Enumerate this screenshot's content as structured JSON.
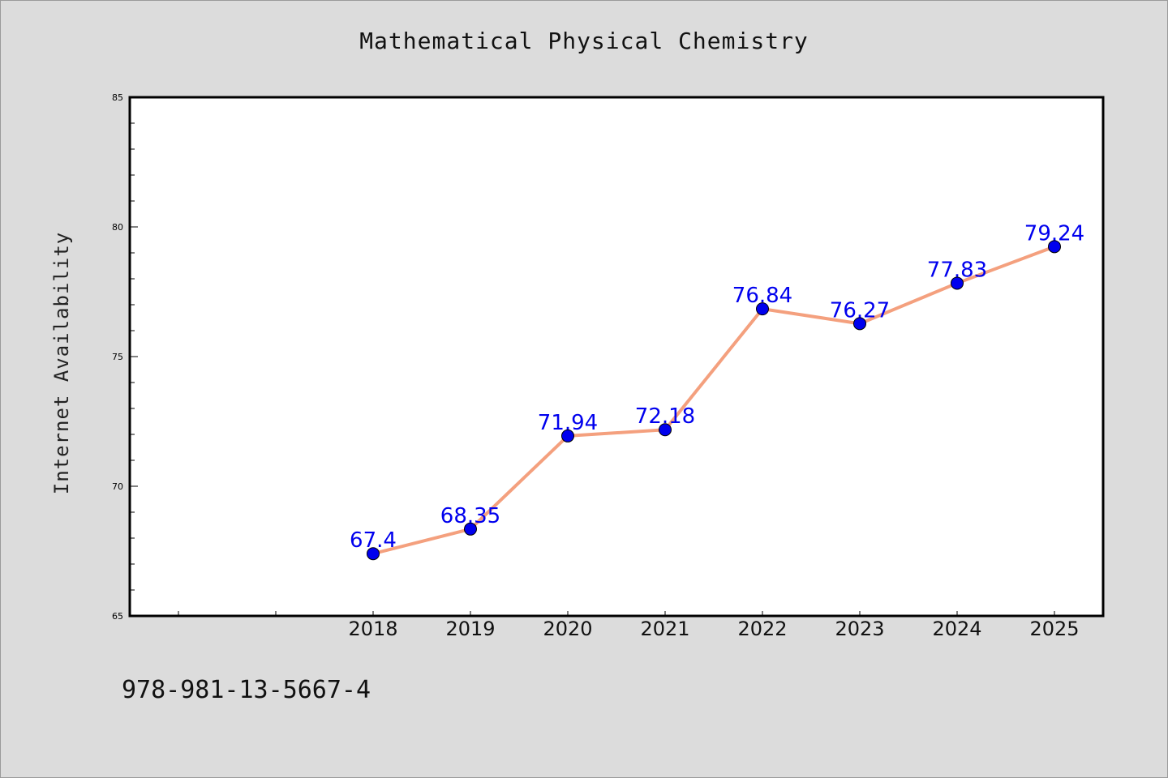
{
  "chart_data": {
    "type": "line",
    "title": "Mathematical Physical Chemistry",
    "xlabel": "",
    "ylabel": "Internet Availability",
    "categories": [
      "2018",
      "2019",
      "2020",
      "2021",
      "2022",
      "2023",
      "2024",
      "2025"
    ],
    "series": [
      {
        "values": [
          67.4,
          68.35,
          71.94,
          72.18,
          76.84,
          76.27,
          77.83,
          79.24
        ],
        "labels": [
          "67.4",
          "68.35",
          "71.94",
          "72.18",
          "76.84",
          "76.27",
          "77.83",
          "79.24"
        ]
      }
    ],
    "ylim": [
      65,
      85
    ],
    "yticks": [
      "65",
      "70",
      "75",
      "80",
      "85"
    ],
    "grid": false,
    "legend": "none",
    "colors": {
      "line": "#f4a07e",
      "marker": "#0000ee",
      "data_label": "#0000ee",
      "plot_background": "#ffffff",
      "page_background": "#dcdcdc"
    }
  },
  "footer": {
    "isbn": "978-981-13-5667-4"
  }
}
